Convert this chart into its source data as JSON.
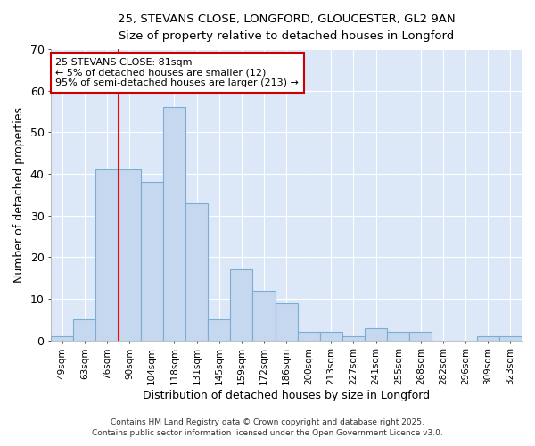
{
  "title_line1": "25, STEVANS CLOSE, LONGFORD, GLOUCESTER, GL2 9AN",
  "title_line2": "Size of property relative to detached houses in Longford",
  "xlabel": "Distribution of detached houses by size in Longford",
  "ylabel": "Number of detached properties",
  "categories": [
    "49sqm",
    "63sqm",
    "76sqm",
    "90sqm",
    "104sqm",
    "118sqm",
    "131sqm",
    "145sqm",
    "159sqm",
    "172sqm",
    "186sqm",
    "200sqm",
    "213sqm",
    "227sqm",
    "241sqm",
    "255sqm",
    "268sqm",
    "282sqm",
    "296sqm",
    "309sqm",
    "323sqm"
  ],
  "values": [
    1,
    5,
    41,
    41,
    38,
    56,
    33,
    5,
    17,
    12,
    9,
    2,
    2,
    1,
    3,
    2,
    2,
    0,
    0,
    1,
    1
  ],
  "bar_color": "#c5d8f0",
  "bar_edge_color": "#7aadd4",
  "figure_bg": "#ffffff",
  "axes_bg": "#dce8f8",
  "grid_color": "#ffffff",
  "red_line_x": 2,
  "annotation_text": "25 STEVANS CLOSE: 81sqm\n← 5% of detached houses are smaller (12)\n95% of semi-detached houses are larger (213) →",
  "annotation_box_color": "#ffffff",
  "annotation_box_edge_color": "#cc0000",
  "footer_line1": "Contains HM Land Registry data © Crown copyright and database right 2025.",
  "footer_line2": "Contains public sector information licensed under the Open Government Licence v3.0.",
  "ylim": [
    0,
    70
  ],
  "yticks": [
    0,
    10,
    20,
    30,
    40,
    50,
    60,
    70
  ]
}
